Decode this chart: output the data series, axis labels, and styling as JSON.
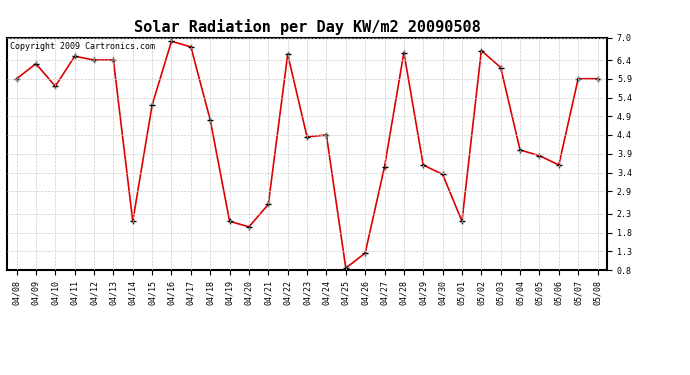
{
  "title": "Solar Radiation per Day KW/m2 20090508",
  "copyright_text": "Copyright 2009 Cartronics.com",
  "dates": [
    "04/08",
    "04/09",
    "04/10",
    "04/11",
    "04/12",
    "04/13",
    "04/14",
    "04/15",
    "04/16",
    "04/17",
    "04/18",
    "04/19",
    "04/20",
    "04/21",
    "04/22",
    "04/23",
    "04/24",
    "04/25",
    "04/26",
    "04/27",
    "04/28",
    "04/29",
    "04/30",
    "05/01",
    "05/02",
    "05/03",
    "05/04",
    "05/05",
    "05/06",
    "05/07",
    "05/08"
  ],
  "values": [
    5.9,
    6.3,
    5.7,
    6.5,
    6.4,
    6.4,
    2.1,
    5.2,
    6.9,
    6.75,
    4.8,
    2.1,
    1.95,
    2.55,
    6.55,
    4.35,
    4.4,
    0.85,
    1.25,
    3.55,
    6.6,
    3.6,
    3.35,
    2.1,
    6.65,
    6.2,
    4.0,
    3.85,
    3.6,
    5.9,
    5.9
  ],
  "line_color": "#dd0000",
  "marker_color": "#000000",
  "bg_color": "#ffffff",
  "plot_bg_color": "#ffffff",
  "grid_color": "#cccccc",
  "ylim": [
    0.8,
    7.0
  ],
  "yticks": [
    0.8,
    1.3,
    1.8,
    2.3,
    2.9,
    3.4,
    3.9,
    4.4,
    4.9,
    5.4,
    5.9,
    6.4,
    7.0
  ],
  "title_fontsize": 11,
  "tick_fontsize": 6,
  "copyright_fontsize": 6
}
